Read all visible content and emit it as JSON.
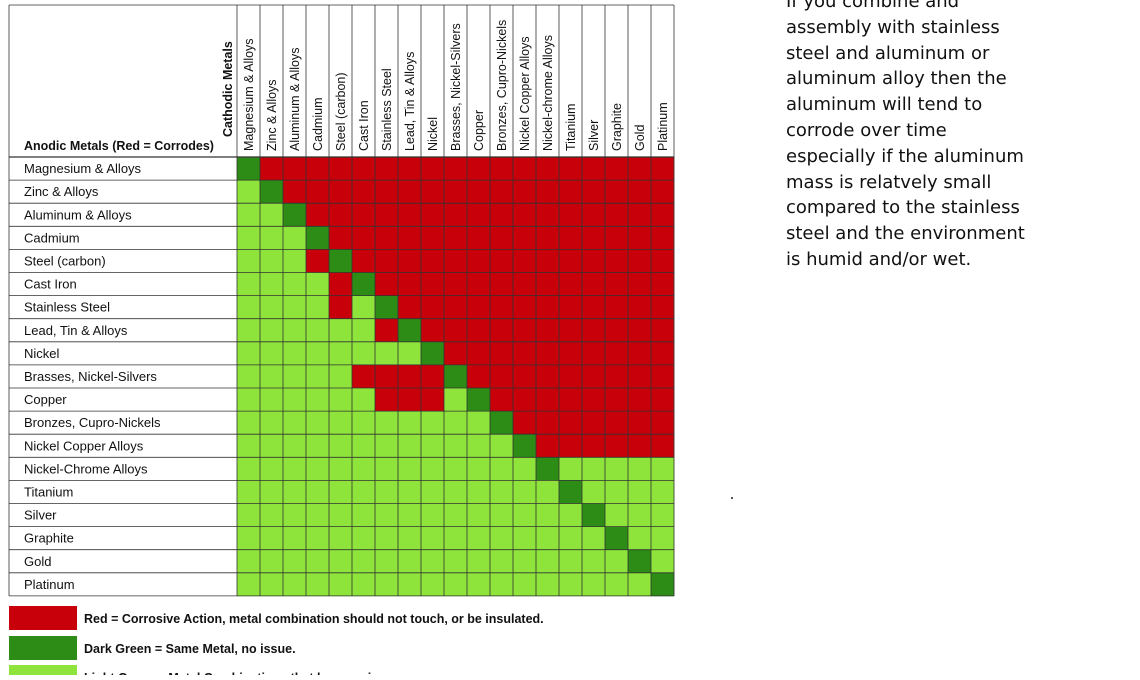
{
  "matrix": {
    "corner_top_label": "Cathodic Metals",
    "corner_left_label": "Anodic Metals (Red = Corrodes)",
    "columns": [
      "Magnesium & Alloys",
      "Zinc & Alloys",
      "Aluminum & Alloys",
      "Cadmium",
      "Steel (carbon)",
      "Cast Iron",
      "Stainless Steel",
      "Lead, Tin & Alloys",
      "Nickel",
      "Brasses, Nickel-Silvers",
      "Copper",
      "Bronzes, Cupro-Nickels",
      "Nickel Copper Alloys",
      "Nickel-chrome Alloys",
      "Titanium",
      "Silver",
      "Graphite",
      "Gold",
      "Platinum"
    ],
    "rows": [
      "Magnesium & Alloys",
      "Zinc & Alloys",
      "Aluminum & Alloys",
      "Cadmium",
      "Steel (carbon)",
      "Cast Iron",
      "Stainless Steel",
      "Lead, Tin & Alloys",
      "Nickel",
      "Brasses, Nickel-Silvers",
      "Copper",
      "Bronzes, Cupro-Nickels",
      "Nickel Copper Alloys",
      "Nickel-Chrome Alloys",
      "Titanium",
      "Silver",
      "Graphite",
      "Gold",
      "Platinum"
    ]
  },
  "chart_data": {
    "type": "heatmap",
    "title": "",
    "x_title": "Cathodic Metals",
    "y_title": "Anodic Metals (Red = Corrodes)",
    "categories_x": [
      "Magnesium & Alloys",
      "Zinc & Alloys",
      "Aluminum & Alloys",
      "Cadmium",
      "Steel (carbon)",
      "Cast Iron",
      "Stainless Steel",
      "Lead, Tin & Alloys",
      "Nickel",
      "Brasses, Nickel-Silvers",
      "Copper",
      "Bronzes, Cupro-Nickels",
      "Nickel Copper Alloys",
      "Nickel-chrome Alloys",
      "Titanium",
      "Silver",
      "Graphite",
      "Gold",
      "Platinum"
    ],
    "categories_y": [
      "Magnesium & Alloys",
      "Zinc & Alloys",
      "Aluminum & Alloys",
      "Cadmium",
      "Steel (carbon)",
      "Cast Iron",
      "Stainless Steel",
      "Lead, Tin & Alloys",
      "Nickel",
      "Brasses, Nickel-Silvers",
      "Copper",
      "Bronzes, Cupro-Nickels",
      "Nickel Copper Alloys",
      "Nickel-Chrome Alloys",
      "Titanium",
      "Silver",
      "Graphite",
      "Gold",
      "Platinum"
    ],
    "code_meaning": {
      "R": "Red",
      "D": "Dark Green",
      "L": "Light Green"
    },
    "cells": [
      "DRRRRRRRRRRRRRRRRRR",
      "LDRRRRRRRRRRRRRRRRR",
      "LLDRRRRRRRRRRRRRRRR",
      "LLLDRRRRRRRRRRRRRRR",
      "LLLRDRRRRRRRRRRRRRR",
      "LLLLRDRRRRRRRRRRRRR",
      "LLLLRLDRRRRRRRRRRRR",
      "LLLLLLRDRRRRRRRRRRR",
      "LLLLLLLLDRRRRRRRRRR",
      "LLLLLRRRRDRRRRRRRRR",
      "LLLLLLRRRLDRRRRRRRR",
      "LLLLLLLLLLLDRRRRRRR",
      "LLLLLLLLLLLLDRRRRRR",
      "LLLLLLLLLLLLLDLLLLL",
      "LLLLLLLLLLLLLLDLLLL",
      "LLLLLLLLLLLLLLLDLLL",
      "LLLLLLLLLLLLLLLLDLL",
      "LLLLLLLLLLLLLLLLLDL",
      "LLLLLLLLLLLLLLLLLLD"
    ],
    "legend": [
      {
        "key": "R",
        "color": "#c8000a",
        "label": "Red = Corrosive Action, metal combination should not touch, or be insulated."
      },
      {
        "key": "D",
        "color": "#2c8c16",
        "label": "Dark Green = Same Metal, no issue."
      },
      {
        "key": "L",
        "color": "#8ee43a",
        "label": "Light Green = Metal Combinations that have no issue."
      }
    ],
    "legend_placement": "bottom"
  },
  "note": {
    "lines": [
      "If you combine and",
      "assembly with stainless",
      "steel and aluminum or",
      "aluminum alloy then the",
      "aluminum will tend to",
      "corrode over time",
      "especially if the aluminum",
      "mass is relatvely small",
      "compared to the stainless",
      "steel and the environment",
      "is humid and/or wet."
    ]
  }
}
